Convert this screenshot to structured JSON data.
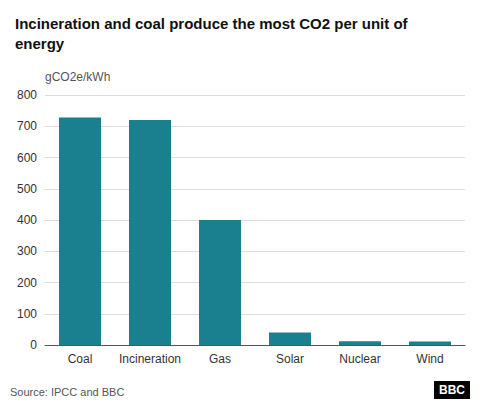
{
  "chart_data": {
    "type": "bar",
    "title": "Incineration and coal produce the most CO2 per unit of\nenergy",
    "ylabel": "gCO2e/kWh",
    "categories": [
      "Coal",
      "Incineration",
      "Gas",
      "Solar",
      "Nuclear",
      "Wind"
    ],
    "values": [
      728,
      720,
      400,
      40,
      12,
      11
    ],
    "color": "#1a7f8e",
    "ylim": [
      0,
      800
    ],
    "yticks": [
      0,
      100,
      200,
      300,
      400,
      500,
      600,
      700,
      800
    ],
    "grid": true,
    "annotations": [
      "Source: IPCC and BBC",
      "BBC"
    ]
  }
}
